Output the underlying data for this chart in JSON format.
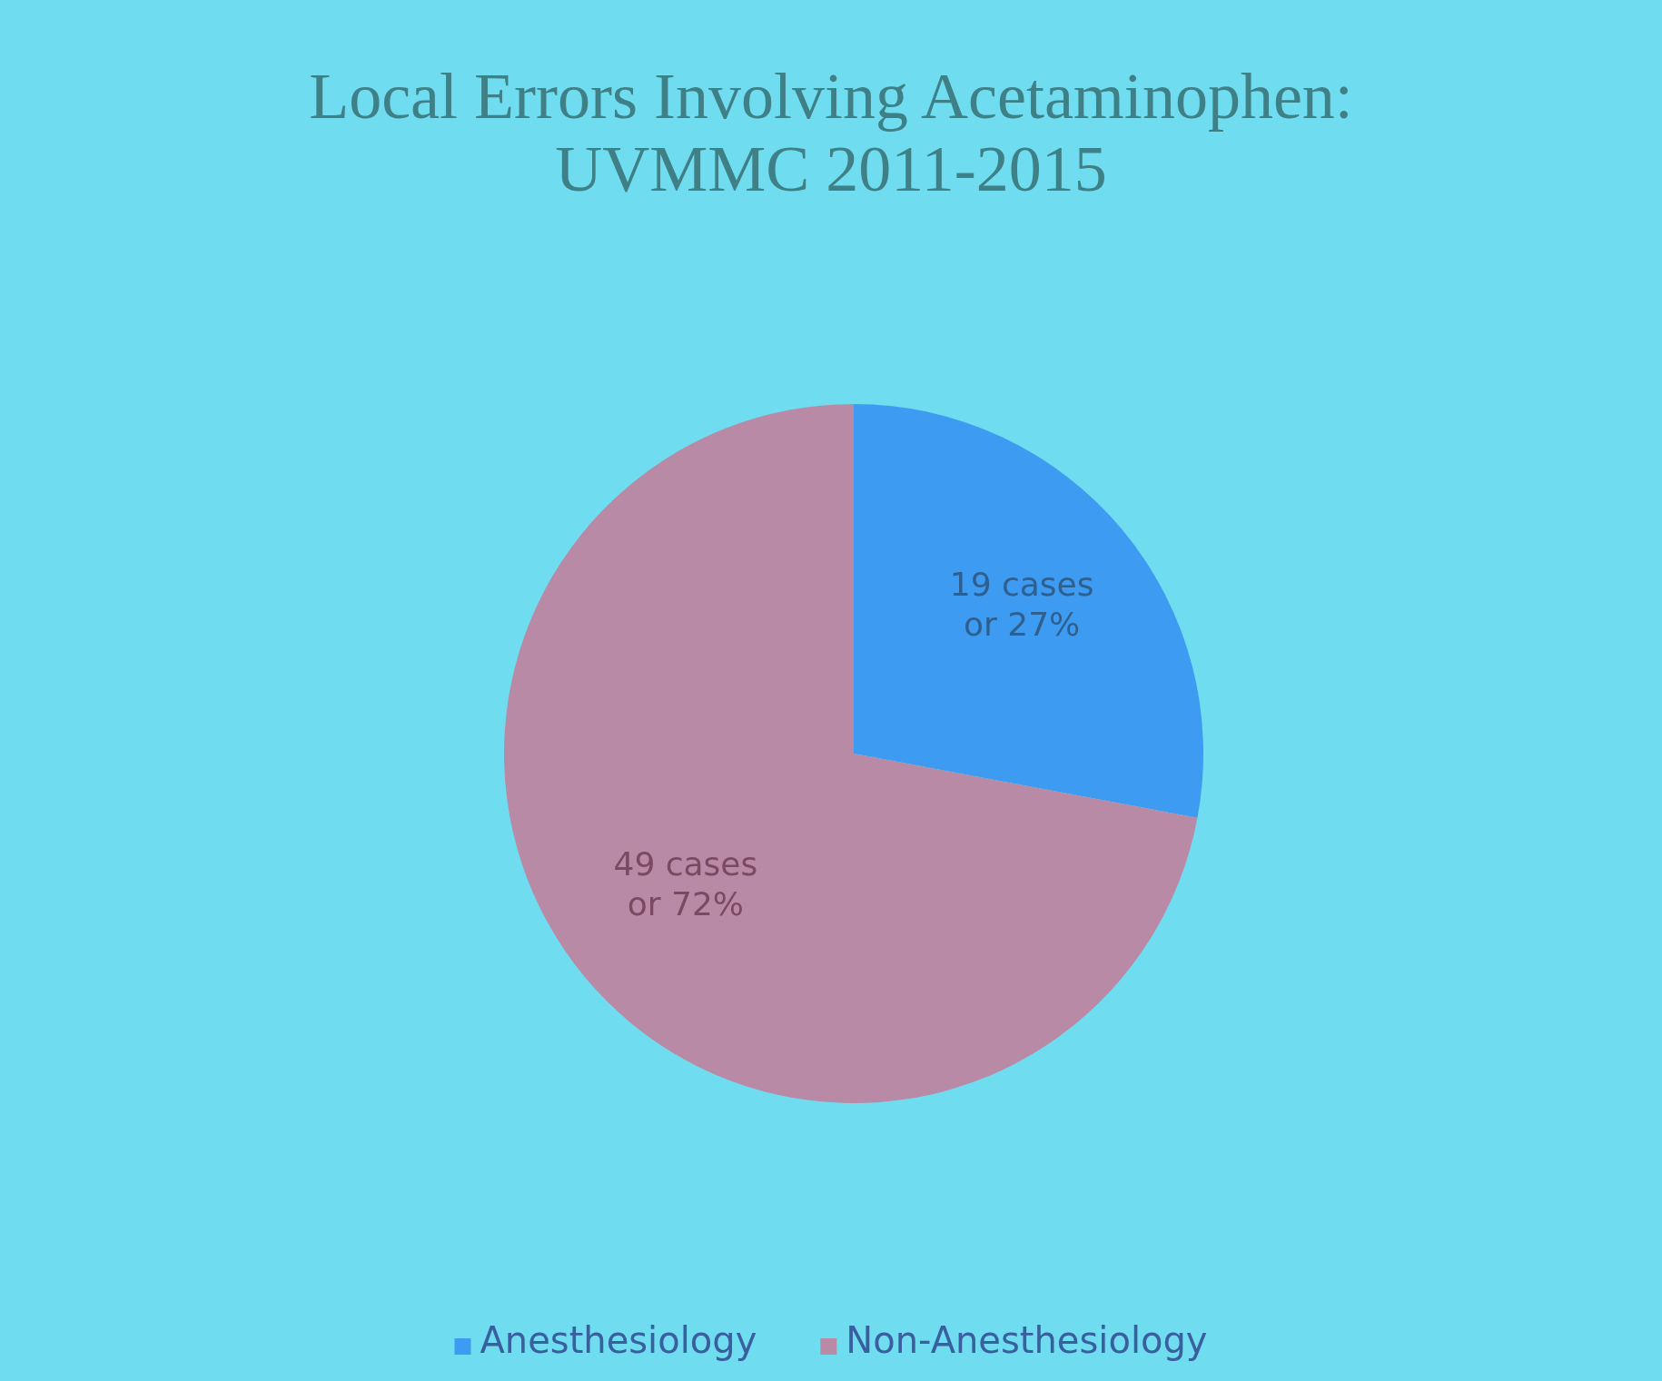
{
  "chart_data": {
    "type": "pie",
    "title": "Local Errors Involving Acetaminophen: UVMMC 2011-2015",
    "categories": [
      "Anesthesiology",
      "Non-Anesthesiology"
    ],
    "values": [
      19,
      49
    ],
    "colors": [
      "#3d9cf2",
      "#b98aa6"
    ],
    "value_labels": [
      "19 cases or 27%",
      "49 cases or 72%"
    ],
    "legend": "bottom"
  }
}
